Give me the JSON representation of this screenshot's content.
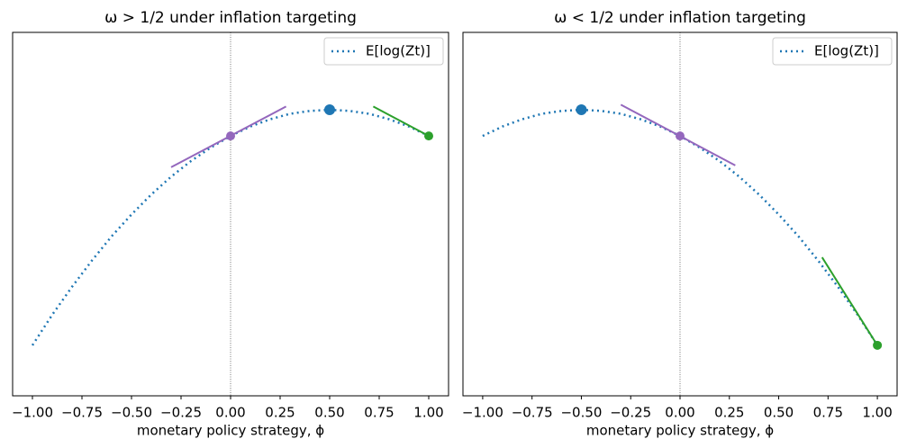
{
  "chart_data": [
    {
      "type": "line",
      "title": "ω > 1/2 under inflation targeting",
      "xlabel": "monetary policy strategy, ϕ",
      "xlim": [
        -1.1,
        1.1
      ],
      "ylim": [
        0,
        1
      ],
      "xticks": [
        {
          "value": -1,
          "label": "−1.00"
        },
        {
          "value": -0.75,
          "label": "−0.75"
        },
        {
          "value": -0.5,
          "label": "−0.50"
        },
        {
          "value": -0.25,
          "label": "−0.25"
        },
        {
          "value": 0,
          "label": "0.00"
        },
        {
          "value": 0.25,
          "label": "0.25"
        },
        {
          "value": 0.5,
          "label": "0.50"
        },
        {
          "value": 0.75,
          "label": "0.75"
        },
        {
          "value": 1,
          "label": "1.00"
        }
      ],
      "vline": 0,
      "legend": "upper right",
      "x": [
        -1,
        -0.9,
        -0.8,
        -0.7,
        -0.6,
        -0.5,
        -0.4,
        -0.3,
        -0.2,
        -0.1,
        0,
        0.1,
        0.2,
        0.3,
        0.4,
        0.5,
        0.6,
        0.7,
        0.8,
        0.9,
        1
      ],
      "series": [
        {
          "name": "E[log(Zt)]",
          "color": "#1f77b4",
          "values": [
            0.139,
            0.223,
            0.3,
            0.372,
            0.439,
            0.499,
            0.554,
            0.603,
            0.646,
            0.683,
            0.715,
            0.741,
            0.761,
            0.776,
            0.784,
            0.787,
            0.784,
            0.776,
            0.761,
            0.741,
            0.715
          ]
        }
      ],
      "lines": [
        {
          "color": "#9467bd",
          "x": [
            -0.3,
            0.28
          ],
          "values": [
            0.629,
            0.796
          ]
        },
        {
          "color": "#2ca02c",
          "x": [
            0.72,
            1
          ],
          "values": [
            0.796,
            0.715
          ]
        }
      ],
      "points": [
        {
          "color": "#1f77b4",
          "x": 0.5,
          "y": 0.787,
          "size": 6
        },
        {
          "color": "#9467bd",
          "x": 0,
          "y": 0.715,
          "size": 5
        },
        {
          "color": "#2ca02c",
          "x": 1,
          "y": 0.715,
          "size": 5
        }
      ]
    },
    {
      "type": "line",
      "title": "ω < 1/2 under inflation targeting",
      "xlabel": "monetary policy strategy, ϕ",
      "xlim": [
        -1.1,
        1.1
      ],
      "ylim": [
        0,
        1
      ],
      "xticks": [
        {
          "value": -1,
          "label": "−1.00"
        },
        {
          "value": -0.75,
          "label": "−0.75"
        },
        {
          "value": -0.5,
          "label": "−0.50"
        },
        {
          "value": -0.25,
          "label": "−0.25"
        },
        {
          "value": 0,
          "label": "0.00"
        },
        {
          "value": 0.25,
          "label": "0.25"
        },
        {
          "value": 0.5,
          "label": "0.50"
        },
        {
          "value": 0.75,
          "label": "0.75"
        },
        {
          "value": 1,
          "label": "1.00"
        }
      ],
      "vline": 0,
      "legend": "upper right",
      "x": [
        -1,
        -0.9,
        -0.8,
        -0.7,
        -0.6,
        -0.5,
        -0.4,
        -0.3,
        -0.2,
        -0.1,
        0,
        0.1,
        0.2,
        0.3,
        0.4,
        0.5,
        0.6,
        0.7,
        0.8,
        0.9,
        1
      ],
      "series": [
        {
          "name": "E[log(Zt)]",
          "color": "#1f77b4",
          "values": [
            0.715,
            0.741,
            0.761,
            0.776,
            0.784,
            0.787,
            0.784,
            0.776,
            0.761,
            0.741,
            0.715,
            0.683,
            0.646,
            0.603,
            0.554,
            0.499,
            0.439,
            0.372,
            0.3,
            0.223,
            0.139
          ]
        }
      ],
      "lines": [
        {
          "color": "#9467bd",
          "x": [
            -0.3,
            0.28
          ],
          "values": [
            0.801,
            0.634
          ]
        },
        {
          "color": "#2ca02c",
          "x": [
            0.72,
            1
          ],
          "values": [
            0.381,
            0.139
          ]
        }
      ],
      "points": [
        {
          "color": "#1f77b4",
          "x": -0.5,
          "y": 0.787,
          "size": 6
        },
        {
          "color": "#9467bd",
          "x": 0,
          "y": 0.715,
          "size": 5
        },
        {
          "color": "#2ca02c",
          "x": 1,
          "y": 0.139,
          "size": 5
        }
      ]
    }
  ]
}
